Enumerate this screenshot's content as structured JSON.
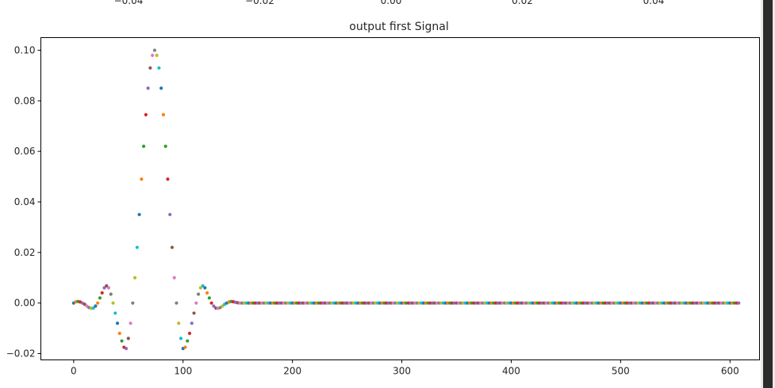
{
  "colors": [
    "#1f77b4",
    "#ff7f0e",
    "#2ca02c",
    "#d62728",
    "#9467bd",
    "#8c564b",
    "#e377c2",
    "#7f7f7f",
    "#bcbd22",
    "#17becf"
  ],
  "top_partial_axis": {
    "ticks": [
      -0.04,
      -0.02,
      0.0,
      0.02,
      0.04
    ],
    "labels": [
      "−0.04",
      "−0.02",
      "0.00",
      "0.02",
      "0.04"
    ],
    "xlim": [
      -0.05,
      0.05
    ]
  },
  "chart_data": {
    "type": "scatter",
    "title": "output first Signal",
    "xlabel": "",
    "ylabel": "",
    "xlim": [
      -30,
      627
    ],
    "ylim": [
      -0.0225,
      0.105
    ],
    "xticks": [
      0,
      100,
      200,
      300,
      400,
      500,
      600
    ],
    "xtick_labels": [
      "0",
      "100",
      "200",
      "300",
      "400",
      "500",
      "600"
    ],
    "yticks": [
      -0.02,
      0.0,
      0.02,
      0.04,
      0.06,
      0.08,
      0.1
    ],
    "ytick_labels": [
      "−0.02",
      "0.00",
      "0.02",
      "0.04",
      "0.06",
      "0.08",
      "0.10"
    ],
    "grid": false,
    "x_start": 0,
    "x_step": 2,
    "y": [
      0.0,
      0.0005,
      0.0006,
      0.0004,
      0.0,
      -0.0005,
      -0.0012,
      -0.0018,
      -0.0021,
      -0.002,
      -0.0012,
      0.0,
      0.002,
      0.004,
      0.006,
      0.0068,
      0.006,
      0.0035,
      0.0,
      -0.004,
      -0.008,
      -0.012,
      -0.015,
      -0.0175,
      -0.018,
      -0.014,
      -0.008,
      0.0,
      0.01,
      0.022,
      0.035,
      0.049,
      0.062,
      0.0745,
      0.085,
      0.093,
      0.098,
      0.1,
      0.098,
      0.093,
      0.085,
      0.0745,
      0.062,
      0.049,
      0.035,
      0.022,
      0.01,
      0.0,
      -0.008,
      -0.014,
      -0.018,
      -0.0175,
      -0.015,
      -0.012,
      -0.008,
      -0.004,
      0.0,
      0.0035,
      0.006,
      0.0068,
      0.006,
      0.004,
      0.002,
      0.0,
      -0.0012,
      -0.002,
      -0.0021,
      -0.0018,
      -0.0012,
      -0.0005,
      0.0,
      0.0004,
      0.0006,
      0.0005,
      0.0003,
      0.0001,
      0.0,
      0.0,
      0.0,
      0.0,
      0.0,
      0.0,
      0.0,
      0.0,
      0.0,
      0.0,
      0.0,
      0.0,
      0.0,
      0.0,
      0.0,
      0.0,
      0.0,
      0.0,
      0.0,
      0.0,
      0.0,
      0.0,
      0.0,
      0.0,
      0.0,
      0.0,
      0.0,
      0.0,
      0.0,
      0.0,
      0.0,
      0.0,
      0.0,
      0.0,
      0.0,
      0.0,
      0.0,
      0.0,
      0.0,
      0.0,
      0.0,
      0.0,
      0.0,
      0.0,
      0.0,
      0.0,
      0.0,
      0.0,
      0.0,
      0.0,
      0.0,
      0.0,
      0.0,
      0.0,
      0.0,
      0.0,
      0.0,
      0.0,
      0.0,
      0.0,
      0.0,
      0.0,
      0.0,
      0.0,
      0.0,
      0.0,
      0.0,
      0.0,
      0.0,
      0.0,
      0.0,
      0.0,
      0.0,
      0.0,
      0.0,
      0.0,
      0.0,
      0.0,
      0.0,
      0.0,
      0.0,
      0.0,
      0.0,
      0.0,
      0.0,
      0.0,
      0.0,
      0.0,
      0.0,
      0.0,
      0.0,
      0.0,
      0.0,
      0.0,
      0.0,
      0.0,
      0.0,
      0.0,
      0.0,
      0.0,
      0.0,
      0.0,
      0.0,
      0.0,
      0.0,
      0.0,
      0.0,
      0.0,
      0.0,
      0.0,
      0.0,
      0.0,
      0.0,
      0.0,
      0.0,
      0.0,
      0.0,
      0.0,
      0.0,
      0.0,
      0.0,
      0.0,
      0.0,
      0.0,
      0.0,
      0.0,
      0.0,
      0.0,
      0.0,
      0.0,
      0.0,
      0.0,
      0.0,
      0.0,
      0.0,
      0.0,
      0.0,
      0.0,
      0.0,
      0.0,
      0.0,
      0.0,
      0.0,
      0.0,
      0.0,
      0.0,
      0.0,
      0.0,
      0.0,
      0.0,
      0.0,
      0.0,
      0.0,
      0.0,
      0.0,
      0.0,
      0.0,
      0.0,
      0.0,
      0.0,
      0.0,
      0.0,
      0.0,
      0.0,
      0.0,
      0.0,
      0.0,
      0.0,
      0.0,
      0.0,
      0.0,
      0.0,
      0.0,
      0.0,
      0.0,
      0.0,
      0.0,
      0.0,
      0.0,
      0.0,
      0.0,
      0.0,
      0.0,
      0.0,
      0.0,
      0.0,
      0.0,
      0.0,
      0.0,
      0.0,
      0.0,
      0.0,
      0.0,
      0.0,
      0.0,
      0.0,
      0.0,
      0.0,
      0.0,
      0.0,
      0.0,
      0.0,
      0.0,
      0.0,
      0.0,
      0.0,
      0.0,
      0.0,
      0.0,
      0.0,
      0.0,
      0.0,
      0.0,
      0.0,
      0.0,
      0.0,
      0.0,
      0.0,
      0.0,
      0.0,
      0.0,
      0.0,
      0.0,
      0.0,
      0.0,
      0.0,
      0.0,
      0.0,
      0.0
    ]
  }
}
